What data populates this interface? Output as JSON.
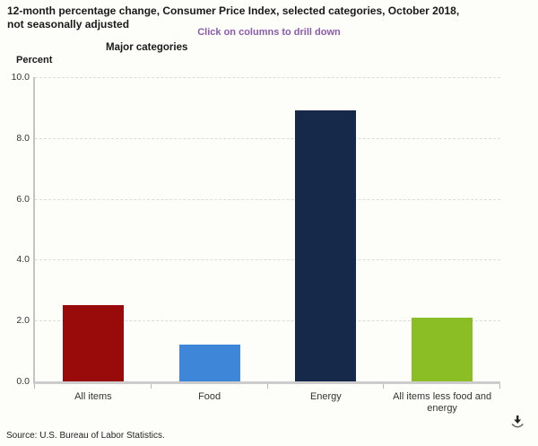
{
  "header": {
    "title_line1": "12-month percentage change, Consumer Price Index, selected categories, October 2018,",
    "title_line2": "not seasonally adjusted",
    "drilldown_hint": "Click on columns to drill down",
    "chart_label": "Major categories",
    "axis_unit_label": "Percent"
  },
  "chart_data": {
    "type": "bar",
    "title": "Major categories",
    "categories": [
      "All items",
      "Food",
      "Energy",
      "All items less food and energy"
    ],
    "values": [
      2.5,
      1.2,
      8.9,
      2.1
    ],
    "bar_colors": [
      "#990b0b",
      "#3e86d8",
      "#16294a",
      "#8bbd25"
    ],
    "xlabel": "",
    "ylabel": "Percent",
    "ylim": [
      0,
      10
    ],
    "ytick_step": 2,
    "ytick_labels": [
      "0.0",
      "2.0",
      "4.0",
      "6.0",
      "8.0",
      "10.0"
    ],
    "grid": "horizontal-dashed",
    "legend": "none"
  },
  "footer": {
    "source": "Source: U.S. Bureau of Labor Statistics."
  },
  "colors": {
    "hint_purple": "#8b5bad",
    "gridline": "#dcdcdc",
    "axis_line": "#c4c4c4",
    "baseline": "#cccccc",
    "title_text": "#1a1a1a",
    "tick_text": "#333333",
    "background": "#fdfdfa"
  }
}
